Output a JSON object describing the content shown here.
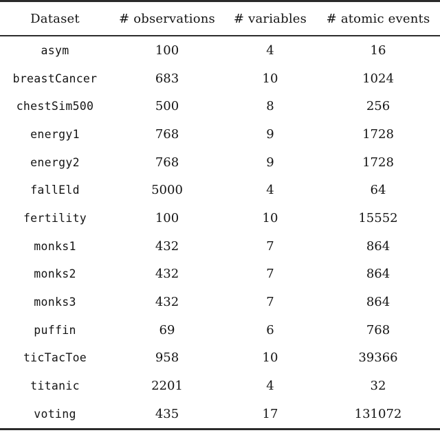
{
  "page": {
    "background_color": "#ffffff",
    "text_color": "#141414",
    "rule_color": "#2b2b2b"
  },
  "table": {
    "columns": [
      {
        "label": "Dataset"
      },
      {
        "label": "# observations"
      },
      {
        "label": "# variables"
      },
      {
        "label": "# atomic events"
      }
    ],
    "rows": [
      {
        "dataset": "asym",
        "observations": "100",
        "variables": "4",
        "atomic_events": "16"
      },
      {
        "dataset": "breastCancer",
        "observations": "683",
        "variables": "10",
        "atomic_events": "1024"
      },
      {
        "dataset": "chestSim500",
        "observations": "500",
        "variables": "8",
        "atomic_events": "256"
      },
      {
        "dataset": "energy1",
        "observations": "768",
        "variables": "9",
        "atomic_events": "1728"
      },
      {
        "dataset": "energy2",
        "observations": "768",
        "variables": "9",
        "atomic_events": "1728"
      },
      {
        "dataset": "fallEld",
        "observations": "5000",
        "variables": "4",
        "atomic_events": "64"
      },
      {
        "dataset": "fertility",
        "observations": "100",
        "variables": "10",
        "atomic_events": "15552"
      },
      {
        "dataset": "monks1",
        "observations": "432",
        "variables": "7",
        "atomic_events": "864"
      },
      {
        "dataset": "monks2",
        "observations": "432",
        "variables": "7",
        "atomic_events": "864"
      },
      {
        "dataset": "monks3",
        "observations": "432",
        "variables": "7",
        "atomic_events": "864"
      },
      {
        "dataset": "puffin",
        "observations": "69",
        "variables": "6",
        "atomic_events": "768"
      },
      {
        "dataset": "ticTacToe",
        "observations": "958",
        "variables": "10",
        "atomic_events": "39366"
      },
      {
        "dataset": "titanic",
        "observations": "2201",
        "variables": "4",
        "atomic_events": "32"
      },
      {
        "dataset": "voting",
        "observations": "435",
        "variables": "17",
        "atomic_events": "131072"
      }
    ]
  }
}
